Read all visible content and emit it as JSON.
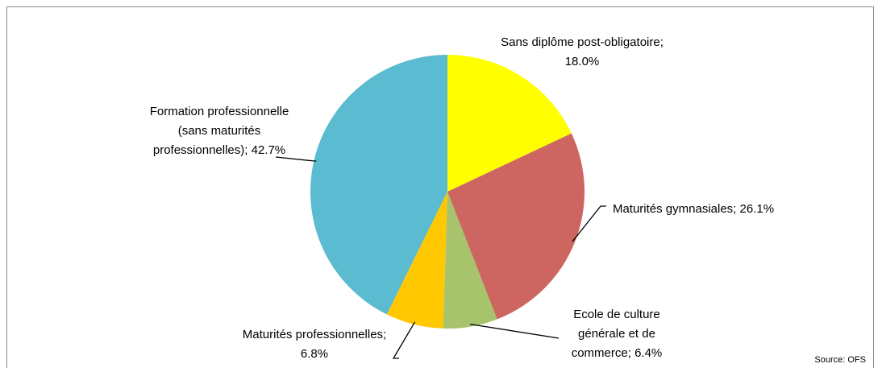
{
  "chart_data": {
    "type": "pie",
    "values": [
      18.0,
      26.1,
      6.4,
      6.8,
      42.7
    ],
    "value_labels": [
      "Sans diplôme post-obligatoire; 18.0%",
      "Maturités gymnasiales; 26.1%",
      "Ecole de culture générale et de commerce; 6.4%",
      "Maturités professionnelles; 6.8%",
      "Formation professionnelle (sans maturités professionnelles); 42.7%"
    ],
    "colors": [
      "#ffff00",
      "#cd6660",
      "#a7c36c",
      "#ffc800",
      "#5bbbd0"
    ],
    "source": "Source: OFS"
  }
}
